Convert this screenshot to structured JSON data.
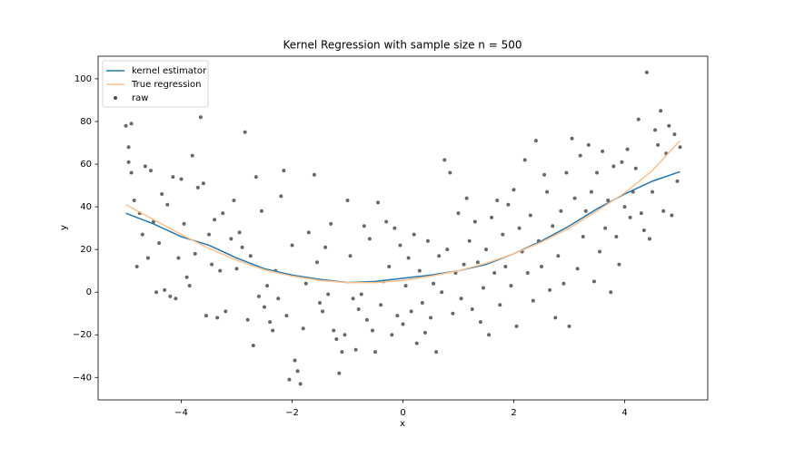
{
  "chart_data": {
    "type": "line",
    "title": "Kernel Regression with sample size n = 500",
    "xlabel": "x",
    "ylabel": "y",
    "xlim": [
      -5.5,
      5.5
    ],
    "ylim": [
      -50.5,
      110.6
    ],
    "xticks": [
      {
        "value": -4,
        "label": "−4"
      },
      {
        "value": -2,
        "label": "−2"
      },
      0,
      2,
      4
    ],
    "yticks": [
      {
        "value": -40,
        "label": "−40"
      },
      {
        "value": -20,
        "label": "−20"
      },
      0,
      20,
      40,
      60,
      80,
      100
    ],
    "legend": "upper left",
    "series": [
      {
        "name": "kernel estimator",
        "type": "line",
        "color": "#1f77b4",
        "x": [
          -5,
          -4.5,
          -4,
          -3.5,
          -3,
          -2.5,
          -2,
          -1.5,
          -1,
          -0.5,
          0,
          0.5,
          1,
          1.5,
          2,
          2.5,
          3,
          3.5,
          4,
          4.5,
          5
        ],
        "values": [
          37,
          32,
          26,
          22,
          16,
          11,
          8,
          6,
          4.5,
          5,
          6.5,
          8,
          10,
          13,
          18,
          24,
          31,
          39,
          46,
          52,
          56.5
        ]
      },
      {
        "name": "True regression",
        "type": "line",
        "color": "#ffbf86",
        "x": [
          -5,
          -4.5,
          -4,
          -3.5,
          -3,
          -2.5,
          -2,
          -1.5,
          -1,
          -0.5,
          0,
          0.5,
          1,
          1.5,
          2,
          2.5,
          3,
          3.5,
          4,
          4.5,
          5
        ],
        "values": [
          41,
          34,
          27,
          20.5,
          15,
          10.5,
          7.5,
          5.5,
          4.5,
          4.5,
          5.5,
          7.5,
          10,
          13.5,
          18,
          23.5,
          30,
          38,
          46.5,
          57,
          71
        ]
      },
      {
        "name": "raw",
        "type": "scatter",
        "color": "#4d4d4d",
        "x": [
          -5,
          -4.9,
          -4.95,
          -4.95,
          -4.9,
          -4.85,
          -4.8,
          -4.75,
          -4.7,
          -4.65,
          -4.6,
          -4.55,
          -4.5,
          -4.45,
          -4.4,
          -4.35,
          -4.3,
          -4.25,
          -4.2,
          -4.15,
          -4.1,
          -4.05,
          -4,
          -3.95,
          -3.9,
          -3.85,
          -3.8,
          -3.75,
          -3.7,
          -3.65,
          -3.6,
          -3.55,
          -3.5,
          -3.45,
          -3.4,
          -3.35,
          -3.3,
          -3.25,
          -3.2,
          -3.1,
          -3.05,
          -3,
          -2.95,
          -2.9,
          -2.85,
          -2.8,
          -2.75,
          -2.7,
          -2.65,
          -2.6,
          -2.55,
          -2.5,
          -2.45,
          -2.4,
          -2.35,
          -2.3,
          -2.25,
          -2.2,
          -2.15,
          -2.1,
          -2.05,
          -2,
          -1.95,
          -1.9,
          -1.85,
          -1.8,
          -1.75,
          -1.7,
          -1.6,
          -1.55,
          -1.5,
          -1.45,
          -1.4,
          -1.35,
          -1.3,
          -1.25,
          -1.2,
          -1.15,
          -1.1,
          -1.05,
          -1,
          -0.95,
          -0.9,
          -0.85,
          -0.8,
          -0.75,
          -0.7,
          -0.65,
          -0.6,
          -0.55,
          -0.5,
          -0.45,
          -0.4,
          -0.35,
          -0.3,
          -0.25,
          -0.2,
          -0.15,
          -0.1,
          -0.05,
          0,
          0.05,
          0.1,
          0.15,
          0.2,
          0.25,
          0.3,
          0.35,
          0.4,
          0.45,
          0.5,
          0.55,
          0.6,
          0.65,
          0.7,
          0.75,
          0.8,
          0.85,
          0.9,
          0.95,
          1,
          1.05,
          1.1,
          1.15,
          1.2,
          1.25,
          1.3,
          1.35,
          1.4,
          1.45,
          1.5,
          1.55,
          1.6,
          1.65,
          1.7,
          1.75,
          1.8,
          1.85,
          1.9,
          1.95,
          2,
          2.05,
          2.1,
          2.15,
          2.2,
          2.25,
          2.3,
          2.35,
          2.4,
          2.45,
          2.5,
          2.55,
          2.6,
          2.65,
          2.7,
          2.75,
          2.8,
          2.85,
          2.9,
          2.95,
          3,
          3.05,
          3.1,
          3.15,
          3.2,
          3.25,
          3.3,
          3.35,
          3.4,
          3.45,
          3.5,
          3.55,
          3.6,
          3.65,
          3.7,
          3.75,
          3.8,
          3.85,
          3.9,
          3.95,
          4,
          4.05,
          4.1,
          4.15,
          4.2,
          4.25,
          4.3,
          4.35,
          4.4,
          4.45,
          4.5,
          4.55,
          4.6,
          4.65,
          4.7,
          4.75,
          4.8,
          4.85,
          4.9,
          4.95,
          5
        ],
        "values": [
          78,
          79,
          68,
          61,
          56,
          43,
          12,
          37,
          27,
          59,
          16,
          57,
          33,
          0,
          23,
          46,
          1,
          41,
          -2,
          54,
          -3,
          16,
          53,
          32,
          7,
          3,
          64,
          18,
          49,
          82,
          51,
          -11,
          27,
          13,
          34,
          -12,
          10,
          37,
          -9,
          25,
          43,
          11,
          28,
          21,
          75,
          -13,
          17,
          -25,
          54,
          -2,
          38,
          -7,
          3,
          -14,
          -18,
          10,
          -3,
          45,
          57,
          -11,
          -41,
          22,
          -32,
          -37,
          -43,
          -17,
          4,
          28,
          55,
          14,
          -5,
          -9,
          21,
          -1,
          32,
          -18,
          -22,
          -38,
          -28,
          -20,
          43,
          17,
          -3,
          -27,
          -8,
          -1,
          31,
          -13,
          25,
          -18,
          -28,
          42,
          -6,
          5,
          33,
          12,
          -20,
          30,
          -11,
          22,
          -15,
          3,
          16,
          -9,
          27,
          -24,
          10,
          -5,
          -19,
          24,
          -12,
          4,
          -28,
          17,
          0,
          62,
          20,
          56,
          -10,
          9,
          37,
          -3,
          13,
          44,
          24,
          -8,
          33,
          14,
          -14,
          2,
          20,
          -20,
          35,
          9,
          43,
          -6,
          27,
          12,
          41,
          3,
          48,
          -16,
          30,
          19,
          62,
          9,
          36,
          -4,
          71,
          24,
          12,
          55,
          47,
          1,
          31,
          -12,
          17,
          38,
          4,
          56,
          -16,
          72,
          44,
          11,
          64,
          26,
          38,
          69,
          47,
          5,
          56,
          19,
          66,
          30,
          43,
          0,
          59,
          26,
          13,
          61,
          40,
          67,
          35,
          47,
          58,
          81,
          37,
          29,
          103,
          25,
          47,
          76,
          69,
          85,
          38,
          65,
          78,
          36,
          74,
          52,
          68
        ]
      }
    ]
  }
}
